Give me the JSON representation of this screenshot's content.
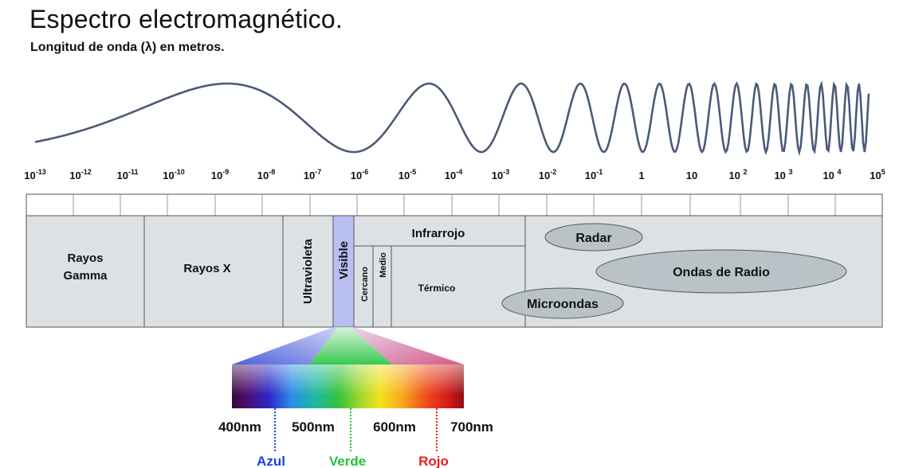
{
  "title": "Espectro electromagnético.",
  "subtitle": "Longitud de onda (λ) en metros.",
  "scale_labels": [
    {
      "base": "10",
      "exp": "-13"
    },
    {
      "base": "10",
      "exp": "-12"
    },
    {
      "base": "10",
      "exp": "-11"
    },
    {
      "base": "10",
      "exp": "-10"
    },
    {
      "base": "10",
      "exp": "-9"
    },
    {
      "base": "10",
      "exp": "-8"
    },
    {
      "base": "10",
      "exp": "-7"
    },
    {
      "base": "10",
      "exp": "-6"
    },
    {
      "base": "10",
      "exp": "-5"
    },
    {
      "base": "10",
      "exp": "-4"
    },
    {
      "base": "10",
      "exp": "-3"
    },
    {
      "base": "10",
      "exp": "-2"
    },
    {
      "base": "10",
      "exp": "-1"
    },
    {
      "base": "1",
      "exp": ""
    },
    {
      "base": "10",
      "exp": ""
    },
    {
      "base": "10 ",
      "exp": "2"
    },
    {
      "base": "10 ",
      "exp": "3"
    },
    {
      "base": "10 ",
      "exp": "4"
    },
    {
      "base": "10",
      "exp": "5"
    }
  ],
  "regions": {
    "gamma": [
      "Rayos",
      "Gamma"
    ],
    "xray": "Rayos X",
    "uv": "Ultravioleta",
    "visible": "Visible",
    "infrared": "Infrarrojo",
    "near_ir": "Cercano",
    "mid_ir": "Medio",
    "thermal_ir": "Térmico",
    "radar": "Radar",
    "radio": "Ondas de Radio",
    "microwave": "Microondas"
  },
  "visible_scale": {
    "ticks": [
      "400nm",
      "500nm",
      "600nm",
      "700nm"
    ],
    "colors": [
      {
        "name": "Azul",
        "color": "#1f3fe0"
      },
      {
        "name": "Verde",
        "color": "#22c53a"
      },
      {
        "name": "Rojo",
        "color": "#e8211f"
      }
    ]
  },
  "colors": {
    "wave": "#4a5a78",
    "band_fill": "#dde1e3",
    "band_stroke": "#555555",
    "ellipse_fill": "#b9c3c7",
    "visible_fill": "#b9bff2"
  }
}
